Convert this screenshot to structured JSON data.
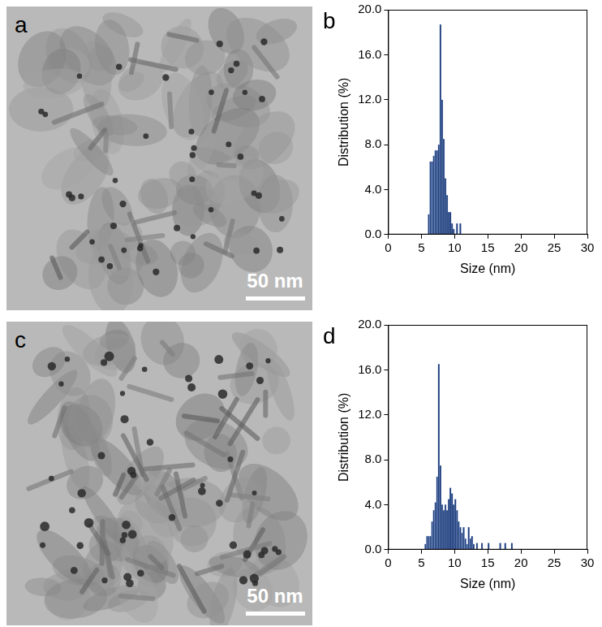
{
  "panels": [
    {
      "label": "a",
      "scale_bar": "50 nm"
    },
    {
      "label": "c",
      "scale_bar": "50 nm"
    }
  ],
  "chart_data": [
    {
      "panel": "b",
      "type": "histogram",
      "x_label": "Size (nm)",
      "y_label": "Distribution (%)",
      "bins": [
        6.0,
        6.25,
        6.5,
        6.75,
        7.0,
        7.25,
        7.5,
        7.75,
        8.0,
        8.25,
        8.5,
        8.75,
        9.0,
        9.25,
        9.5,
        9.75,
        10.0,
        10.25,
        10.5,
        10.75,
        11.0
      ],
      "values": [
        1.8,
        6.5,
        6.5,
        7.0,
        7.5,
        7.5,
        8.0,
        18.7,
        12.0,
        8.5,
        5.0,
        3.5,
        2.0,
        2.0,
        1.0,
        0.5,
        0,
        1.0,
        0,
        1.0
      ],
      "color": "#1f3d7a",
      "xlim": [
        0,
        30
      ],
      "xticks": [
        0,
        5,
        10,
        15,
        20,
        25,
        30
      ],
      "ylim": [
        0,
        20
      ],
      "yticks": [
        {
          "value": 0,
          "label": "0.0"
        },
        {
          "value": 4,
          "label": "4.0"
        },
        {
          "value": 8,
          "label": "8.0"
        },
        {
          "value": 12,
          "label": "12.0"
        },
        {
          "value": 16,
          "label": "16.0"
        },
        {
          "value": 20,
          "label": "20.0"
        }
      ],
      "grid": false
    },
    {
      "panel": "d",
      "type": "histogram",
      "x_label": "Size (nm)",
      "y_label": "Distribution (%)",
      "bins": [
        5.5,
        5.75,
        6.0,
        6.25,
        6.5,
        6.75,
        7.0,
        7.25,
        7.5,
        7.75,
        8.0,
        8.25,
        8.5,
        8.75,
        9.0,
        9.25,
        9.5,
        9.75,
        10.0,
        10.25,
        10.5,
        10.75,
        11.0,
        11.25,
        11.5,
        11.75,
        12.0,
        12.25,
        12.5,
        12.75,
        13.0,
        13.25,
        13.5,
        13.75,
        14.0,
        14.25,
        14.5,
        14.75,
        15.0,
        15.25,
        15.5,
        15.75,
        16.0,
        16.25,
        16.5,
        16.75,
        17.0,
        17.25,
        17.5,
        17.75,
        18.0,
        18.25,
        18.5,
        18.75,
        19.0
      ],
      "values": [
        0.5,
        1.2,
        1.2,
        1.2,
        2.5,
        3.5,
        4.2,
        6.5,
        16.5,
        7.5,
        4.0,
        3.5,
        4.0,
        3.5,
        4.5,
        5.5,
        5.0,
        4.0,
        4.5,
        3.5,
        2.5,
        2.0,
        1.5,
        2.0,
        1.0,
        0.5,
        2.0,
        1.0,
        1.2,
        0.5,
        0,
        0.6,
        0,
        0,
        0.6,
        0,
        0,
        0,
        0.6,
        0,
        0,
        0,
        0,
        0,
        0,
        0.6,
        0,
        0,
        0.6,
        0,
        0,
        0,
        0.6,
        0
      ],
      "color": "#1f3d7a",
      "xlim": [
        0,
        30
      ],
      "xticks": [
        0,
        5,
        10,
        15,
        20,
        25,
        30
      ],
      "ylim": [
        0,
        20
      ],
      "yticks": [
        {
          "value": 0,
          "label": "0.0"
        },
        {
          "value": 4,
          "label": "4.0"
        },
        {
          "value": 8,
          "label": "8.0"
        },
        {
          "value": 12,
          "label": "12.0"
        },
        {
          "value": 16,
          "label": "16.0"
        },
        {
          "value": 20,
          "label": "20.0"
        }
      ],
      "grid": false
    }
  ]
}
